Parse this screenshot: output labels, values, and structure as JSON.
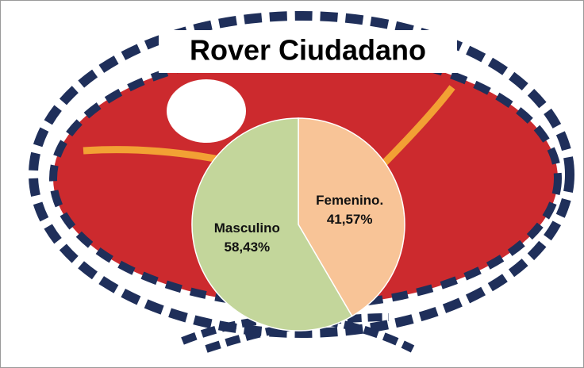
{
  "chart_data": {
    "type": "pie",
    "title": "Rover Ciudadano",
    "categories": [
      "Femenino.",
      "Masculino"
    ],
    "values": [
      41.57,
      58.43
    ],
    "value_labels": [
      "41,57%",
      "58,43%"
    ],
    "colors": [
      "#f8c497",
      "#c3d69b"
    ]
  }
}
